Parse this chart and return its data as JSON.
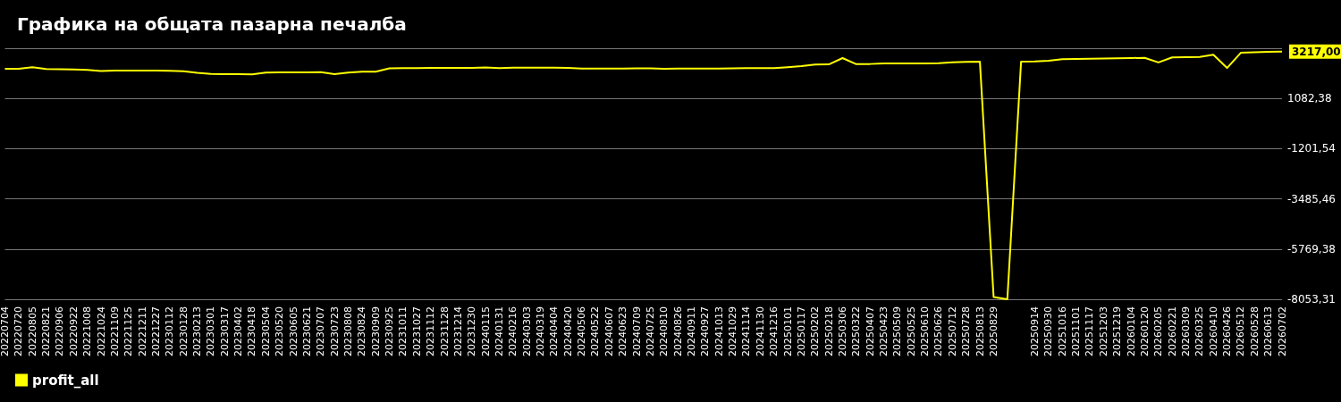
{
  "chart_data": {
    "type": "line",
    "title": "Графика на общата пазарна печалба",
    "categories": [
      "20220704",
      "20220720",
      "20220805",
      "20220821",
      "20220906",
      "20220922",
      "20221008",
      "20221024",
      "20221109",
      "20221125",
      "20221211",
      "20221227",
      "20230112",
      "20230128",
      "20230213",
      "20230301",
      "20230317",
      "20230402",
      "20230418",
      "20230504",
      "20230520",
      "20230605",
      "20230621",
      "20230707",
      "20230723",
      "20230808",
      "20230824",
      "20230909",
      "20230925",
      "20231011",
      "20231027",
      "20231112",
      "20231128",
      "20231214",
      "20231230",
      "20240115",
      "20240131",
      "20240216",
      "20240303",
      "20240319",
      "20240404",
      "20240420",
      "20240506",
      "20240522",
      "20240607",
      "20240623",
      "20240709",
      "20240725",
      "20240810",
      "20240826",
      "20240911",
      "20240927",
      "20241013",
      "20241029",
      "20241114",
      "20241130",
      "20241216",
      "20250101",
      "20250117",
      "20250202",
      "20250218",
      "20250306",
      "20250322",
      "20250407",
      "20250423",
      "20250509",
      "20250525",
      "20250610",
      "20250626",
      "20250712",
      "20250728",
      "20250813",
      "20250829",
      null,
      null,
      "20250914",
      "20250930",
      "20251016",
      "20251101",
      "20251117",
      "20251203",
      "20251219",
      "20260104",
      "20260120",
      "20260205",
      "20260221",
      "20260309",
      "20260325",
      "20260410",
      "20260426",
      "20260512",
      "20260528",
      "20260613",
      "20260702"
    ],
    "series": [
      {
        "name": "profit_all",
        "color": "#ffff00",
        "values": [
          2430,
          2430,
          2500,
          2420,
          2410,
          2400,
          2380,
          2330,
          2350,
          2350,
          2350,
          2350,
          2340,
          2320,
          2250,
          2200,
          2190,
          2190,
          2180,
          2260,
          2270,
          2270,
          2270,
          2280,
          2190,
          2260,
          2300,
          2300,
          2450,
          2460,
          2460,
          2470,
          2470,
          2470,
          2470,
          2490,
          2460,
          2480,
          2480,
          2480,
          2480,
          2470,
          2440,
          2440,
          2440,
          2440,
          2450,
          2450,
          2430,
          2440,
          2440,
          2440,
          2440,
          2450,
          2460,
          2460,
          2460,
          2500,
          2550,
          2620,
          2630,
          2920,
          2640,
          2650,
          2680,
          2680,
          2680,
          2680,
          2690,
          2730,
          2750,
          2760,
          -7950,
          -8050,
          2760,
          2770,
          2800,
          2870,
          2880,
          2890,
          2900,
          2910,
          2920,
          2930,
          2720,
          2950,
          2960,
          2970,
          3070,
          2470,
          3160,
          3180,
          3200,
          3217
        ]
      }
    ],
    "ylim": [
      -8053.31,
      3366.3
    ],
    "yticks": [
      {
        "value": -8053.31,
        "label": "-8053,31"
      },
      {
        "value": -5769.38,
        "label": "-5769,38"
      },
      {
        "value": -3485.46,
        "label": "-3485,46"
      },
      {
        "value": -1201.54,
        "label": "-1201,54"
      },
      {
        "value": 1082.38,
        "label": "1082,38"
      },
      {
        "value": 3366.3,
        "label": null
      }
    ],
    "annotations": [
      "3217,00"
    ],
    "grid": "y",
    "legend": "bottom left",
    "marker": "none",
    "line_style": "solid"
  }
}
